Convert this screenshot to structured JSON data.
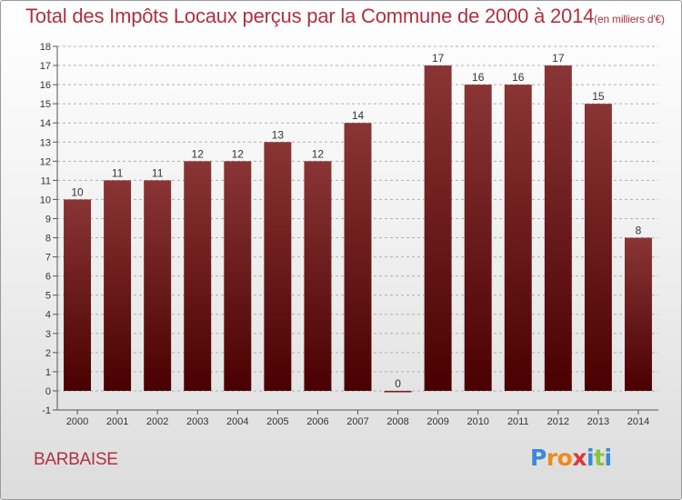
{
  "title": "Total des Impôts Locaux perçus par la Commune de 2000 à 2014",
  "title_unit": "(en milliers d'€)",
  "commune": "BARBAISE",
  "logo": {
    "text": "Proxiti",
    "letters": [
      "P",
      "r",
      "o",
      "x",
      "i",
      "t",
      "i"
    ],
    "colors": [
      "#3a8ad8",
      "#f08a1a",
      "#f08a1a",
      "#d83a3a",
      "#3a8ad8",
      "#8ac43a",
      "#3a8ad8"
    ]
  },
  "colors": {
    "bar_top": "#8a3535",
    "bar_bottom": "#4a0000",
    "title": "#b03040",
    "grid": "#b0b0b0",
    "axis": "#555555"
  },
  "chart_data": {
    "type": "bar",
    "title": "Total des Impôts Locaux perçus par la Commune de 2000 à 2014",
    "xlabel": "",
    "ylabel": "en milliers d'€",
    "categories": [
      "2000",
      "2001",
      "2002",
      "2003",
      "2004",
      "2005",
      "2006",
      "2007",
      "2008",
      "2009",
      "2010",
      "2011",
      "2012",
      "2013",
      "2014"
    ],
    "values": [
      10,
      11,
      11,
      12,
      12,
      13,
      12,
      14,
      0,
      17,
      16,
      16,
      17,
      15,
      8
    ],
    "ylim": [
      -1,
      18
    ],
    "yticks": [
      -1,
      0,
      1,
      2,
      3,
      4,
      5,
      6,
      7,
      8,
      9,
      10,
      11,
      12,
      13,
      14,
      15,
      16,
      17,
      18
    ],
    "grid": "horizontal dashed"
  }
}
